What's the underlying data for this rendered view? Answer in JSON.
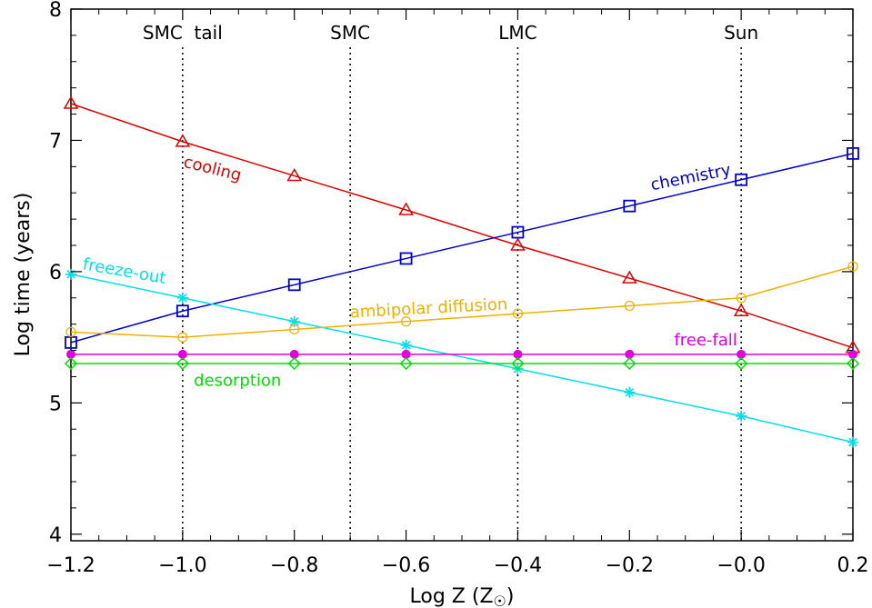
{
  "chart_data": {
    "type": "line",
    "xlabel": "Log Z (Z",
    "xlabel_sub": "☉",
    "xlabel_close": ")",
    "ylabel": "Log time (years)",
    "xlim": [
      -1.2,
      0.2
    ],
    "ylim": [
      3.95,
      8.0
    ],
    "xticks": [
      {
        "value": -1.2,
        "label": "−1.2"
      },
      {
        "value": -1.0,
        "label": "−1.0"
      },
      {
        "value": -0.8,
        "label": "−0.8"
      },
      {
        "value": -0.6,
        "label": "−0.6"
      },
      {
        "value": -0.4,
        "label": "−0.4"
      },
      {
        "value": -0.2,
        "label": "−0.2"
      },
      {
        "value": 0.0,
        "label": "−0.0"
      },
      {
        "value": 0.2,
        "label": "0.2"
      }
    ],
    "yticks": [
      {
        "value": 4,
        "label": "4"
      },
      {
        "value": 5,
        "label": "5"
      },
      {
        "value": 6,
        "label": "6"
      },
      {
        "value": 7,
        "label": "7"
      },
      {
        "value": 8,
        "label": "8"
      }
    ],
    "reference_lines": [
      {
        "x": -1.0,
        "label": "SMC  tail"
      },
      {
        "x": -0.7,
        "label": "SMC"
      },
      {
        "x": -0.4,
        "label": "LMC"
      },
      {
        "x": 0.0,
        "label": "Sun"
      }
    ],
    "series": [
      {
        "name": "cooling",
        "color": "#e00000",
        "marker": "triangle",
        "label_x": -1.0,
        "label_y": 6.8,
        "x": [
          -1.2,
          -1.0,
          -0.8,
          -0.6,
          -0.4,
          -0.2,
          0.0,
          0.2
        ],
        "y": [
          7.28,
          6.99,
          6.73,
          6.47,
          6.2,
          5.95,
          5.7,
          5.42
        ]
      },
      {
        "name": "chemistry",
        "color": "#0000d0",
        "marker": "square",
        "label_x": -0.16,
        "label_y": 6.62,
        "x": [
          -1.2,
          -1.0,
          -0.8,
          -0.6,
          -0.4,
          -0.2,
          0.0,
          0.2
        ],
        "y": [
          5.46,
          5.7,
          5.9,
          6.1,
          6.3,
          6.5,
          6.7,
          6.9
        ]
      },
      {
        "name": "freeze-out",
        "color": "#00e0e8",
        "marker": "asterisk",
        "label_x": -1.18,
        "label_y": 6.02,
        "x": [
          -1.2,
          -1.0,
          -0.8,
          -0.6,
          -0.4,
          -0.2,
          0.0,
          0.2
        ],
        "y": [
          5.98,
          5.8,
          5.62,
          5.44,
          5.26,
          5.08,
          4.9,
          4.7
        ]
      },
      {
        "name": "ambipolar diffusion",
        "color": "#f0b000",
        "marker": "circle",
        "label_x": -0.7,
        "label_y": 5.65,
        "x": [
          -1.2,
          -1.0,
          -0.8,
          -0.6,
          -0.4,
          -0.2,
          0.0,
          0.2
        ],
        "y": [
          5.54,
          5.5,
          5.56,
          5.62,
          5.68,
          5.74,
          5.8,
          6.04
        ]
      },
      {
        "name": "free-fall",
        "color": "#e000e0",
        "marker": "dot",
        "label_x": -0.12,
        "label_y": 5.44,
        "x": [
          -1.2,
          -1.0,
          -0.8,
          -0.6,
          -0.4,
          -0.2,
          0.0,
          0.2
        ],
        "y": [
          5.37,
          5.37,
          5.37,
          5.37,
          5.37,
          5.37,
          5.37,
          5.37
        ]
      },
      {
        "name": "desorption",
        "color": "#00e000",
        "marker": "diamond",
        "label_x": -0.98,
        "label_y": 5.13,
        "x": [
          -1.2,
          -1.0,
          -0.8,
          -0.6,
          -0.4,
          -0.2,
          0.0,
          0.2
        ],
        "y": [
          5.3,
          5.3,
          5.3,
          5.3,
          5.3,
          5.3,
          5.3,
          5.3
        ]
      }
    ]
  }
}
